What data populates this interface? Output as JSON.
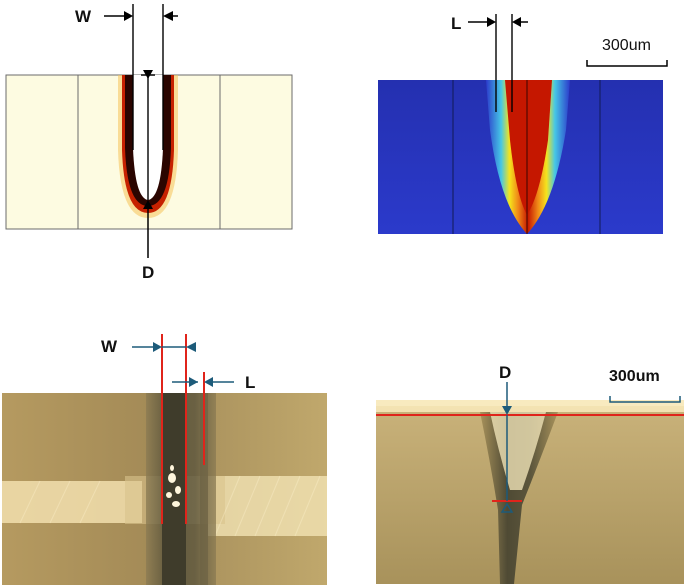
{
  "panels": {
    "sim_temperature": {
      "labels": {
        "width": "W",
        "depth": "D"
      },
      "colors": {
        "background": "#fdfbe1",
        "border": "#6b6b6b",
        "hot_edge": "#c21b00",
        "cavity": "#ffffff"
      }
    },
    "sim_field": {
      "labels": {
        "length": "L",
        "scale_bar": "300um"
      },
      "colors": {
        "background": "#2a35c8",
        "hot": "#c51700",
        "mid": "#f5e41d",
        "cool": "#5ae3d9"
      }
    },
    "micro_top": {
      "labels": {
        "width": "W",
        "length": "L"
      },
      "colors": {
        "surface": "#b8a067",
        "groove": "#4d4a35",
        "marker_lines": "#e0241b",
        "dimension_lines": "#1d5b7a"
      }
    },
    "micro_cross": {
      "labels": {
        "depth": "D",
        "scale_bar": "300um"
      },
      "colors": {
        "surface": "#b59d62",
        "groove": "#58523a",
        "marker_lines": "#e0241b",
        "dimension_lines": "#1d5b7a"
      }
    }
  }
}
